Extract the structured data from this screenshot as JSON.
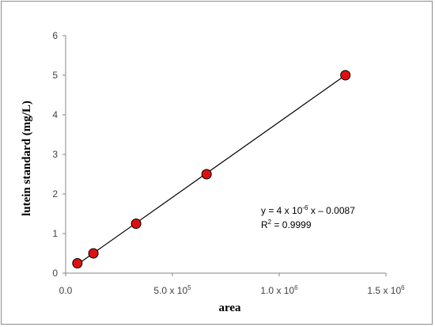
{
  "chart_data": {
    "type": "scatter",
    "xlabel": "area",
    "ylabel": "lutein standard  (mg/L)",
    "xlim": [
      0,
      1500000
    ],
    "ylim": [
      0,
      6
    ],
    "x_ticks": [
      {
        "value": 0,
        "label": "0.0"
      },
      {
        "value": 500000,
        "label": "5.0 x 10",
        "sup": "5"
      },
      {
        "value": 1000000,
        "label": "1.0 x 10",
        "sup": "6"
      },
      {
        "value": 1500000,
        "label": "1.5 x 10",
        "sup": "6"
      }
    ],
    "y_ticks": [
      {
        "value": 0,
        "label": "0"
      },
      {
        "value": 1,
        "label": "1"
      },
      {
        "value": 2,
        "label": "2"
      },
      {
        "value": 3,
        "label": "3"
      },
      {
        "value": 4,
        "label": "4"
      },
      {
        "value": 5,
        "label": "5"
      },
      {
        "value": 6,
        "label": "6"
      }
    ],
    "series": [
      {
        "x": [
          55000,
          130000,
          330000,
          660000,
          1310000
        ],
        "y": [
          0.25,
          0.5,
          1.25,
          2.5,
          5
        ],
        "marker_color": "#e01010"
      }
    ],
    "trendline": {
      "x": [
        55000,
        1310000
      ],
      "y": [
        0.22,
        5.0
      ],
      "color": "#000000"
    },
    "equation": {
      "prefix": "y = 4 x 10",
      "sup": "-6",
      "suffix": " x – 0.0087"
    },
    "r_squared": {
      "prefix": "R",
      "sup": "2",
      "suffix": " = 0.9999"
    },
    "grid": false,
    "legend": "none"
  }
}
